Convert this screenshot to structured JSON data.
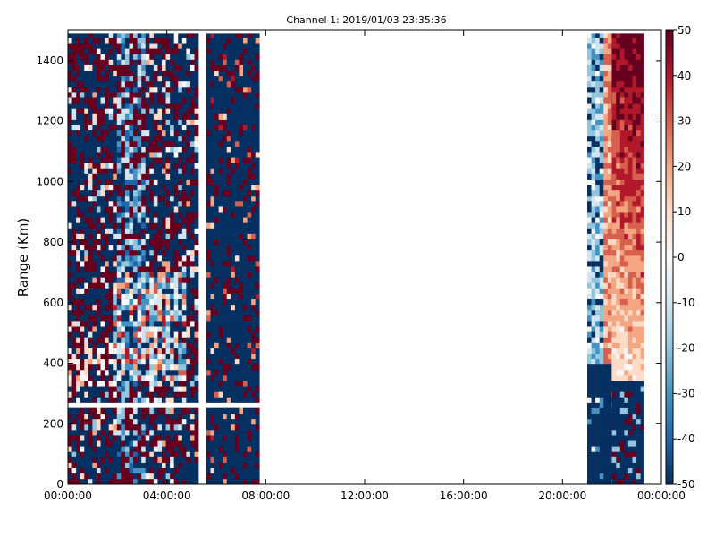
{
  "chart_data": {
    "type": "heatmap",
    "title": "Channel 1: 2019/01/03 23:35:36",
    "xlabel": "",
    "ylabel": "Range (Km)",
    "x_ticks": [
      {
        "hours": 0,
        "label": "00:00:00"
      },
      {
        "hours": 4,
        "label": "04:00:00"
      },
      {
        "hours": 8,
        "label": "08:00:00"
      },
      {
        "hours": 12,
        "label": "12:00:00"
      },
      {
        "hours": 16,
        "label": "16:00:00"
      },
      {
        "hours": 20,
        "label": "20:00:00"
      },
      {
        "hours": 24,
        "label": "00:00:00"
      }
    ],
    "xlim_hours": [
      0,
      24
    ],
    "ylim": [
      0,
      1500
    ],
    "y_ticks": [
      0,
      200,
      400,
      600,
      800,
      1000,
      1200,
      1400
    ],
    "colorbar": {
      "range": [
        -50,
        50
      ],
      "ticks": [
        -50,
        -40,
        -30,
        -20,
        -10,
        0,
        10,
        20,
        30,
        40,
        50
      ],
      "colormap": "RdBu_r"
    },
    "data_segments": [
      {
        "start_hour": 0.0,
        "end_hour": 5.35,
        "dominant": "noisy mix of saturated red and blue, light blue/white echo band 350-700 Km"
      },
      {
        "start_hour": 5.6,
        "end_hour": 7.8,
        "dominant": "mostly deep blue with scattered red"
      },
      {
        "start_hour": 21.0,
        "end_hour": 21.6,
        "dominant": "light blue and white above 400 Km, deep blue below"
      },
      {
        "start_hour": 21.6,
        "end_hour": 22.0,
        "dominant": "pink/orange column"
      },
      {
        "start_hour": 22.0,
        "end_hour": 23.3,
        "dominant": "dark red at high range fading to pink near 400 Km, blue below 340 Km"
      }
    ],
    "grid": false,
    "legend": "none"
  }
}
